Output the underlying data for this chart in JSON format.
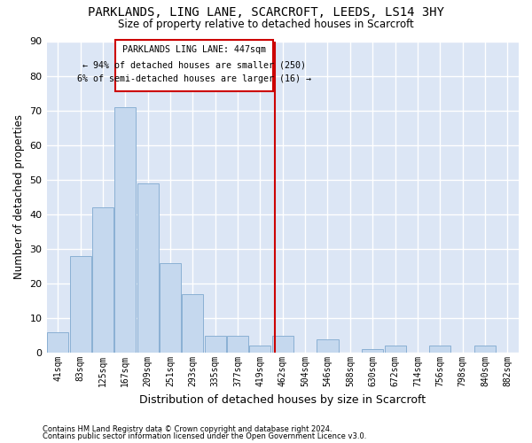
{
  "title_line1": "PARKLANDS, LING LANE, SCARCROFT, LEEDS, LS14 3HY",
  "title_line2": "Size of property relative to detached houses in Scarcroft",
  "xlabel": "Distribution of detached houses by size in Scarcroft",
  "ylabel": "Number of detached properties",
  "categories": [
    "41sqm",
    "83sqm",
    "125sqm",
    "167sqm",
    "209sqm",
    "251sqm",
    "293sqm",
    "335sqm",
    "377sqm",
    "419sqm",
    "462sqm",
    "504sqm",
    "546sqm",
    "588sqm",
    "630sqm",
    "672sqm",
    "714sqm",
    "756sqm",
    "798sqm",
    "840sqm",
    "882sqm"
  ],
  "values": [
    6,
    28,
    42,
    71,
    49,
    26,
    17,
    5,
    5,
    2,
    5,
    0,
    4,
    0,
    1,
    2,
    0,
    2,
    0,
    2,
    0
  ],
  "bar_color": "#c5d8ee",
  "bar_edgecolor": "#8ab0d4",
  "background_color": "#dce6f5",
  "grid_color": "#ffffff",
  "property_line_label": "PARKLANDS LING LANE: 447sqm",
  "annotation_line1": "← 94% of detached houses are smaller (250)",
  "annotation_line2": "6% of semi-detached houses are larger (16) →",
  "annotation_box_color": "#cc0000",
  "ylim": [
    0,
    90
  ],
  "yticks": [
    0,
    10,
    20,
    30,
    40,
    50,
    60,
    70,
    80,
    90
  ],
  "footer1": "Contains HM Land Registry data © Crown copyright and database right 2024.",
  "footer2": "Contains public sector information licensed under the Open Government Licence v3.0.",
  "prop_bin_index": 9.67
}
